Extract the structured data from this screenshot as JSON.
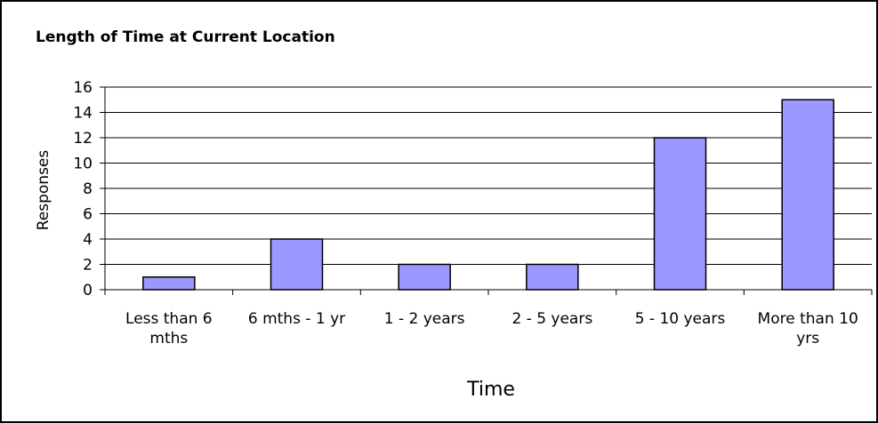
{
  "chart_data": {
    "type": "bar",
    "title": "Length of Time at Current Location",
    "x_label": "Time",
    "y_label": "Responses",
    "categories": [
      "Less than 6 mths",
      "6 mths - 1 yr",
      "1 - 2 years",
      "2 - 5 years",
      "5 - 10 years",
      "More than 10 yrs"
    ],
    "values": [
      1,
      4,
      2,
      2,
      12,
      15
    ],
    "color": "#9999ff",
    "ylim": [
      0,
      16
    ],
    "yticks": [
      0,
      2,
      4,
      6,
      8,
      10,
      12,
      14,
      16
    ],
    "grid": true
  }
}
